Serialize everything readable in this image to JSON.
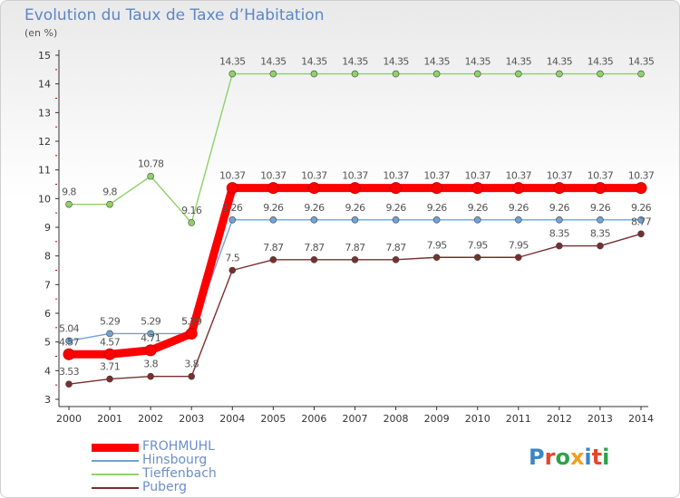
{
  "header": {
    "title": "Evolution du Taux de Taxe d’Habitation",
    "unit": "(en %)"
  },
  "chart_data": {
    "type": "line",
    "title": "Evolution du Taux de Taxe d’Habitation",
    "ylabel": "(en %)",
    "x": [
      "2000",
      "2001",
      "2002",
      "2003",
      "2004",
      "2005",
      "2006",
      "2007",
      "2008",
      "2009",
      "2010",
      "2011",
      "2012",
      "2013",
      "2014"
    ],
    "ylim": [
      3,
      15
    ],
    "yticks": [
      "3",
      "4",
      "5",
      "6",
      "7",
      "8",
      "9",
      "10",
      "11",
      "12",
      "13",
      "14",
      "15"
    ],
    "grid": false,
    "legend_position": "bottom-left",
    "series": [
      {
        "name": "FROHMUHL",
        "color": "#ff0000",
        "values": [
          4.57,
          4.57,
          4.71,
          5.29,
          10.37,
          10.37,
          10.37,
          10.37,
          10.37,
          10.37,
          10.37,
          10.37,
          10.37,
          10.37,
          10.37
        ],
        "labels": [
          "4.57",
          "4.57",
          "4.71",
          "5.29",
          "10.37",
          "10.37",
          "10.37",
          "10.37",
          "10.37",
          "10.37",
          "10.37",
          "10.37",
          "10.37",
          "10.37",
          "10.37"
        ]
      },
      {
        "name": "Hinsbourg",
        "color": "#6fa3d8",
        "values": [
          5.04,
          5.29,
          5.29,
          5.29,
          9.26,
          9.26,
          9.26,
          9.26,
          9.26,
          9.26,
          9.26,
          9.26,
          9.26,
          9.26,
          9.26
        ],
        "labels": [
          "5.04",
          "5.29",
          "5.29",
          "5.29",
          "9.26",
          "9.26",
          "9.26",
          "9.26",
          "9.26",
          "9.26",
          "9.26",
          "9.26",
          "9.26",
          "9.26",
          "9.26"
        ]
      },
      {
        "name": "Tieffenbach",
        "color": "#8ed16b",
        "values": [
          9.8,
          9.8,
          10.78,
          9.16,
          14.35,
          14.35,
          14.35,
          14.35,
          14.35,
          14.35,
          14.35,
          14.35,
          14.35,
          14.35,
          14.35
        ],
        "labels": [
          "9.8",
          "9.8",
          "10.78",
          "9.16",
          "14.35",
          "14.35",
          "14.35",
          "14.35",
          "14.35",
          "14.35",
          "14.35",
          "14.35",
          "14.35",
          "14.35",
          "14.35"
        ]
      },
      {
        "name": "Puberg",
        "color": "#7a2e2e",
        "values": [
          3.53,
          3.71,
          3.8,
          3.8,
          7.5,
          7.87,
          7.87,
          7.87,
          7.87,
          7.95,
          7.95,
          7.95,
          8.35,
          8.35,
          8.77
        ],
        "labels": [
          "3.53",
          "3.71",
          "3.8",
          "3.8",
          "7.5",
          "7.87",
          "7.87",
          "7.87",
          "7.87",
          "7.95",
          "7.95",
          "7.95",
          "8.35",
          "8.35",
          "8.77"
        ]
      }
    ]
  },
  "logo": {
    "text": "Proxiti",
    "letters": [
      "P",
      "r",
      "o",
      "x",
      "i",
      "t",
      "i"
    ],
    "colors": [
      "#3a86c8",
      "#e8452c",
      "#2ea24a",
      "#f0a020",
      "#3a86c8",
      "#e8452c",
      "#2ea24a"
    ]
  }
}
